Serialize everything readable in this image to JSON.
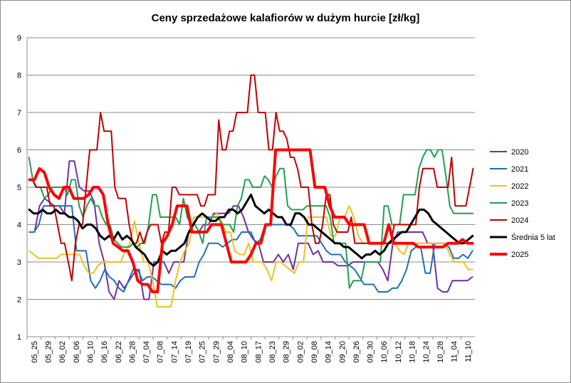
{
  "chart_data": {
    "type": "line",
    "title": "Ceny sprzedażowe kalafiorów w dużym hurcie [zł/kg]",
    "xlabel": "",
    "ylabel": "",
    "ylim": [
      1,
      9
    ],
    "yticks": [
      "1",
      "2",
      "3",
      "4",
      "5",
      "6",
      "7",
      "8",
      "9"
    ],
    "grid": "horizontal",
    "legend_position": "right",
    "x_tick_labels": [
      "05_25",
      "05_29",
      "06_02",
      "06_06",
      "06_10",
      "06_16",
      "06_22",
      "06_28",
      "07_04",
      "07_08",
      "07_14",
      "07_19",
      "07_25",
      "07_29",
      "08_04",
      "08_10",
      "08_17",
      "08_23",
      "08_29",
      "09_02",
      "09_08",
      "09_14",
      "09_20",
      "09_26",
      "09_30",
      "10_06",
      "10_12",
      "10_18",
      "10_24",
      "10_28",
      "11_04",
      "11_10"
    ],
    "series": [
      {
        "name": "2020",
        "color": "#7030a0",
        "width": 2,
        "values": [
          3.8,
          3.8,
          4.5,
          4.7,
          4.6,
          4.5,
          4.5,
          4.3,
          5.7,
          5.7,
          5.0,
          4.9,
          4.9,
          4.6,
          3.5,
          3.0,
          2.2,
          2.0,
          2.5,
          2.3,
          2.5,
          2.7,
          2.8,
          2.0,
          2.0,
          3.0,
          3.0,
          3.0,
          2.7,
          3.0,
          3.0,
          3.0,
          3.8,
          3.8,
          3.8,
          4.0,
          4.0,
          4.3,
          4.3,
          4.3,
          4.3,
          4.5,
          4.5,
          4.2,
          3.8,
          3.6,
          3.5,
          3.0,
          3.0,
          3.0,
          3.2,
          3.0,
          3.2,
          2.8,
          3.5,
          3.5,
          3.5,
          3.2,
          3.3,
          3.0,
          3.0,
          3.0,
          2.9,
          2.9,
          2.9,
          3.0,
          3.0,
          3.0,
          3.0,
          3.0,
          3.0,
          2.8,
          2.5,
          3.5,
          3.8,
          3.8,
          3.8,
          3.8,
          3.8,
          3.8,
          3.5,
          3.5,
          2.3,
          2.2,
          2.2,
          2.5,
          2.5,
          2.5,
          2.5,
          2.6
        ]
      },
      {
        "name": "2021",
        "color": "#1f6fb5",
        "width": 2,
        "values": [
          3.8,
          3.8,
          4.0,
          4.5,
          4.5,
          4.5,
          4.5,
          4.5,
          4.5,
          4.5,
          3.3,
          3.3,
          3.3,
          2.5,
          2.3,
          2.5,
          2.8,
          2.6,
          2.5,
          2.3,
          2.2,
          2.5,
          2.8,
          2.8,
          2.5,
          2.6,
          2.6,
          2.5,
          2.4,
          2.4,
          2.4,
          2.3,
          2.5,
          2.6,
          2.6,
          2.6,
          3.0,
          3.2,
          3.5,
          3.5,
          3.5,
          3.4,
          3.5,
          3.6,
          3.6,
          3.8,
          3.8,
          3.8,
          3.5,
          3.6,
          4.0,
          4.0,
          4.0,
          4.0,
          4.0,
          4.0,
          3.9,
          3.7,
          3.7,
          3.7,
          3.7,
          3.7,
          3.5,
          3.3,
          3.2,
          3.2,
          3.2,
          3.0,
          2.9,
          2.8,
          2.6,
          2.4,
          2.4,
          2.4,
          2.2,
          2.2,
          2.2,
          2.3,
          2.3,
          2.5,
          2.8,
          3.3,
          3.4,
          3.4,
          2.7,
          2.7,
          3.5,
          3.5,
          3.5,
          3.4,
          3.1,
          3.1,
          3.2,
          3.1,
          3.3
        ]
      },
      {
        "name": "2022",
        "color": "#f0c020",
        "width": 2,
        "values": [
          3.3,
          3.2,
          3.1,
          3.1,
          3.1,
          3.1,
          3.1,
          3.2,
          3.2,
          3.2,
          3.2,
          3.2,
          2.9,
          2.7,
          2.7,
          2.9,
          3.0,
          3.0,
          3.0,
          3.0,
          3.0,
          3.3,
          3.5,
          4.1,
          3.5,
          3.0,
          3.0,
          2.5,
          1.8,
          1.8,
          1.8,
          1.8,
          2.5,
          3.0,
          3.3,
          3.5,
          4.2,
          4.2,
          4.2,
          4.2,
          4.2,
          4.3,
          4.1,
          3.8,
          3.8,
          3.3,
          3.2,
          3.2,
          3.5,
          3.0,
          3.0,
          3.0,
          2.8,
          2.5,
          3.0,
          3.0,
          2.9,
          2.8,
          2.7,
          3.0,
          3.0,
          4.2,
          4.2,
          4.2,
          4.2,
          4.2,
          3.7,
          3.7,
          4.2,
          4.2,
          4.5,
          4.2,
          3.7,
          3.5,
          3.5,
          3.5,
          3.5,
          3.5,
          3.5,
          3.5,
          3.5,
          3.3,
          3.2,
          3.5,
          3.5,
          3.5,
          3.5,
          3.5,
          3.5,
          3.5,
          3.5,
          3.5,
          3.2,
          3.0,
          3.0,
          3.0,
          2.8,
          2.8
        ]
      },
      {
        "name": "2023",
        "color": "#20a050",
        "width": 2,
        "values": [
          5.8,
          5.2,
          5.0,
          5.0,
          4.7,
          4.8,
          5.0,
          5.0,
          5.0,
          5.0,
          4.8,
          5.2,
          5.2,
          4.5,
          4.2,
          4.5,
          4.7,
          4.5,
          4.5,
          4.2,
          4.0,
          4.0,
          3.6,
          3.5,
          3.4,
          3.4,
          3.4,
          3.5,
          3.4,
          3.5,
          3.5,
          4.0,
          4.8,
          4.8,
          4.2,
          4.2,
          4.2,
          4.2,
          4.2,
          4.0,
          4.7,
          4.2,
          4.0,
          4.0,
          3.8,
          3.5,
          4.2,
          4.2,
          4.2,
          4.2,
          4.0,
          4.0,
          4.0,
          3.8,
          4.5,
          4.7,
          5.2,
          5.2,
          5.0,
          5.0,
          5.0,
          5.3,
          5.2,
          5.0,
          5.3,
          5.5,
          5.5,
          4.5,
          4.4,
          4.4,
          4.4,
          4.4,
          4.5,
          4.5,
          4.5,
          4.5,
          4.5,
          4.5,
          4.2,
          3.5,
          3.5,
          3.5,
          3.5,
          2.3,
          2.5,
          2.5,
          2.5,
          3.0,
          3.0,
          3.0,
          3.0,
          3.0,
          4.5,
          4.5,
          4.0,
          4.0,
          4.0,
          4.8,
          4.8,
          4.8,
          4.8,
          5.5,
          5.8,
          6.0,
          6.0,
          5.8,
          6.0,
          6.0,
          5.3,
          4.5,
          4.3,
          4.3,
          4.3,
          4.3,
          4.3,
          4.3
        ]
      },
      {
        "name": "2024",
        "color": "#c00000",
        "width": 2,
        "values": [
          5.2,
          5.2,
          5.0,
          5.0,
          5.0,
          5.0,
          4.5,
          4.5,
          4.0,
          3.5,
          3.5,
          3.0,
          2.5,
          3.5,
          4.0,
          4.0,
          5.0,
          6.0,
          6.0,
          6.0,
          7.0,
          6.5,
          6.5,
          6.5,
          5.0,
          4.7,
          4.7,
          4.7,
          4.0,
          3.5,
          3.5,
          3.8,
          3.5,
          3.8,
          4.0,
          4.0,
          4.0,
          3.5,
          3.8,
          3.8,
          5.0,
          5.0,
          4.8,
          4.8,
          4.8,
          4.8,
          4.8,
          4.8,
          4.5,
          4.5,
          4.8,
          4.8,
          4.8,
          6.8,
          6.0,
          6.0,
          6.5,
          6.5,
          7.0,
          7.0,
          7.0,
          7.0,
          8.0,
          8.0,
          7.0,
          7.0,
          7.0,
          6.0,
          6.0,
          7.0,
          6.5,
          6.5,
          6.3,
          5.8,
          5.8,
          5.5,
          5.0,
          5.0,
          5.0,
          4.0,
          3.5,
          3.5,
          4.0,
          4.8,
          4.8,
          4.0,
          3.8,
          3.8,
          3.8,
          3.8,
          4.2,
          3.5,
          3.5,
          3.5,
          3.5,
          3.5,
          3.5,
          3.5,
          3.5,
          3.5,
          3.5,
          3.5,
          4.0,
          4.0,
          4.0,
          4.0,
          4.0,
          4.0,
          4.0,
          5.0,
          5.5,
          5.5,
          5.5,
          5.5,
          5.0,
          5.0,
          5.0,
          5.0,
          5.8,
          4.5,
          4.5,
          4.5,
          4.5,
          5.0,
          5.5
        ]
      },
      {
        "name": "Średnia 5 lat",
        "color": "#000000",
        "width": 3,
        "values": [
          4.4,
          4.3,
          4.3,
          4.4,
          4.3,
          4.3,
          4.4,
          4.3,
          4.3,
          4.2,
          4.2,
          4.1,
          3.9,
          4.0,
          4.0,
          3.9,
          3.7,
          3.6,
          3.7,
          3.6,
          3.8,
          3.6,
          3.7,
          3.6,
          3.4,
          3.3,
          3.2,
          3.0,
          2.9,
          3.0,
          3.3,
          3.2,
          3.3,
          3.3,
          3.4,
          3.5,
          3.8,
          4.0,
          4.2,
          4.3,
          4.2,
          4.1,
          4.1,
          4.2,
          4.2,
          4.4,
          4.4,
          4.3,
          4.4,
          4.6,
          4.8,
          4.5,
          4.4,
          4.3,
          4.4,
          4.3,
          4.2,
          4.2,
          4.0,
          4.0,
          4.3,
          4.3,
          4.2,
          4.0,
          4.0,
          3.9,
          3.8,
          3.7,
          3.6,
          3.5,
          3.5,
          3.4,
          3.4,
          3.3,
          3.2,
          3.1,
          3.2,
          3.2,
          3.3,
          3.2,
          3.3,
          3.5,
          3.6,
          3.7,
          3.8,
          3.8,
          4.0,
          4.2,
          4.4,
          4.4,
          4.3,
          4.1,
          4.0,
          3.9,
          3.8,
          3.7,
          3.6,
          3.5,
          3.5,
          3.6,
          3.7
        ]
      },
      {
        "name": "2025",
        "color": "#ff0000",
        "width": 4,
        "values": [
          5.2,
          5.2,
          5.5,
          5.4,
          5.0,
          4.8,
          4.7,
          5.0,
          5.0,
          4.7,
          4.7,
          4.7,
          4.8,
          5.0,
          5.0,
          4.8,
          4.0,
          3.5,
          3.4,
          3.3,
          3.3,
          3.0,
          2.5,
          2.4,
          2.4,
          2.2,
          2.2,
          3.5,
          3.7,
          4.0,
          4.5,
          4.5,
          4.5,
          3.8,
          3.8,
          3.8,
          3.8,
          4.0,
          4.0,
          4.0,
          3.5,
          3.0,
          3.0,
          3.0,
          3.0,
          3.2,
          3.5,
          3.5,
          4.0,
          4.0,
          6.0,
          6.0,
          6.0,
          6.0,
          6.0,
          6.0,
          6.0,
          6.0,
          5.0,
          5.0,
          5.0,
          4.5,
          4.2,
          4.2,
          4.2,
          4.0,
          4.0,
          4.0,
          4.0,
          3.5,
          3.5,
          3.5,
          3.5,
          4.0,
          3.5,
          3.5,
          3.5,
          3.5,
          3.5,
          3.4,
          3.4,
          3.4,
          3.4,
          3.4,
          3.4,
          3.5,
          3.5,
          3.5,
          3.6,
          3.5,
          3.5
        ]
      }
    ]
  }
}
